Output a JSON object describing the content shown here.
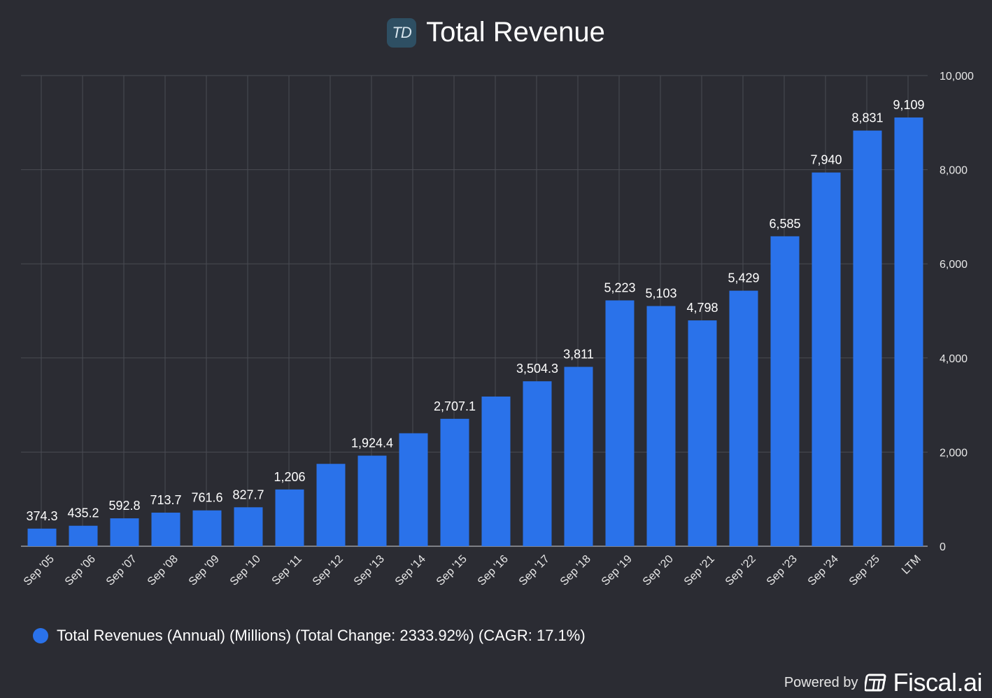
{
  "header": {
    "title": "Total Revenue",
    "logo_text": "TD"
  },
  "chart_data": {
    "type": "bar",
    "categories": [
      "Sep '05",
      "Sep '06",
      "Sep '07",
      "Sep '08",
      "Sep '09",
      "Sep '10",
      "Sep '11",
      "Sep '12",
      "Sep '13",
      "Sep '14",
      "Sep '15",
      "Sep '16",
      "Sep '17",
      "Sep '18",
      "Sep '19",
      "Sep '20",
      "Sep '21",
      "Sep '22",
      "Sep '23",
      "Sep '24",
      "Sep '25",
      "LTM"
    ],
    "values": [
      374.3,
      435.2,
      592.8,
      713.7,
      761.6,
      827.7,
      1206,
      1750,
      1924.4,
      2400,
      2707.1,
      3180,
      3504.3,
      3811,
      5223,
      5103,
      4798,
      5429,
      6585,
      7940,
      8831,
      9109
    ],
    "data_labels": [
      "374.3",
      "435.2",
      "592.8",
      "713.7",
      "761.6",
      "827.7",
      "1,206",
      "",
      "1,924.4",
      "",
      "2,707.1",
      "",
      "3,504.3",
      "3,811",
      "5,223",
      "5,103",
      "4,798",
      "5,429",
      "6,585",
      "7,940",
      "8,831",
      "9,109"
    ],
    "y_ticks": [
      0,
      2000,
      4000,
      6000,
      8000,
      10000
    ],
    "y_tick_labels": [
      "0",
      "2,000",
      "4,000",
      "6,000",
      "8,000",
      "10,000"
    ],
    "ylim": [
      0,
      10000
    ],
    "y_axis_side": "right",
    "grid": true,
    "series": [
      {
        "name": "Total Revenues (Annual) (Millions) (Total Change: 2333.92%) (CAGR: 17.1%)",
        "color": "#2a72ea"
      }
    ],
    "legend_placement": "bottom-left"
  },
  "legend": {
    "label": "Total Revenues (Annual) (Millions) (Total Change: 2333.92%) (CAGR: 17.1%)"
  },
  "footer": {
    "powered_by": "Powered by",
    "brand": "Fiscal.ai"
  },
  "colors": {
    "background": "#2b2c33",
    "bar": "#2a72ea",
    "grid": "#4a4b53",
    "text": "#ffffff"
  }
}
